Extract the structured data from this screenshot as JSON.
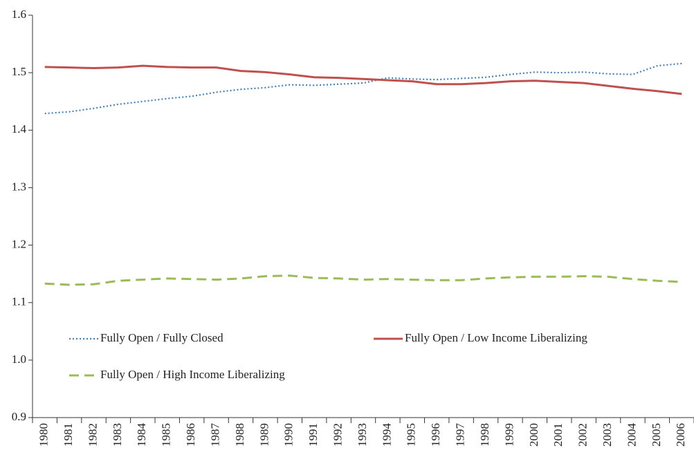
{
  "chart_data": {
    "type": "line",
    "categories": [
      "1980",
      "1981",
      "1982",
      "1983",
      "1984",
      "1985",
      "1986",
      "1987",
      "1988",
      "1989",
      "1990",
      "1991",
      "1992",
      "1993",
      "1994",
      "1995",
      "1996",
      "1997",
      "1998",
      "1999",
      "2000",
      "2001",
      "2002",
      "2003",
      "2004",
      "2005",
      "2006"
    ],
    "series": [
      {
        "name": "Fully Open / Fully Closed",
        "color": "#4a7fb0",
        "dash": "dotted",
        "values": [
          1.429,
          1.432,
          1.438,
          1.445,
          1.45,
          1.455,
          1.459,
          1.466,
          1.471,
          1.474,
          1.479,
          1.478,
          1.48,
          1.482,
          1.491,
          1.489,
          1.488,
          1.49,
          1.492,
          1.497,
          1.501,
          1.5,
          1.501,
          1.498,
          1.497,
          1.512,
          1.516
        ]
      },
      {
        "name": "Fully Open / Low Income Liberalizing",
        "color": "#c0504d",
        "dash": "solid",
        "values": [
          1.51,
          1.509,
          1.508,
          1.509,
          1.512,
          1.51,
          1.509,
          1.509,
          1.503,
          1.501,
          1.497,
          1.492,
          1.491,
          1.489,
          1.487,
          1.485,
          1.48,
          1.48,
          1.482,
          1.485,
          1.486,
          1.484,
          1.482,
          1.477,
          1.472,
          1.468,
          1.463
        ]
      },
      {
        "name": "Fully Open / High Income Liberalizing",
        "color": "#9bbb59",
        "dash": "dashed",
        "values": [
          1.133,
          1.131,
          1.132,
          1.138,
          1.14,
          1.142,
          1.141,
          1.14,
          1.142,
          1.146,
          1.147,
          1.143,
          1.142,
          1.14,
          1.141,
          1.14,
          1.139,
          1.139,
          1.142,
          1.144,
          1.145,
          1.145,
          1.146,
          1.145,
          1.141,
          1.138,
          1.136
        ]
      }
    ],
    "ylim": [
      0.9,
      1.6
    ],
    "yticks": [
      0.9,
      {
        "value": 1,
        "label": "1.0"
      },
      1.1,
      1.2,
      1.3,
      1.4,
      1.5,
      1.6
    ],
    "grid": false
  }
}
